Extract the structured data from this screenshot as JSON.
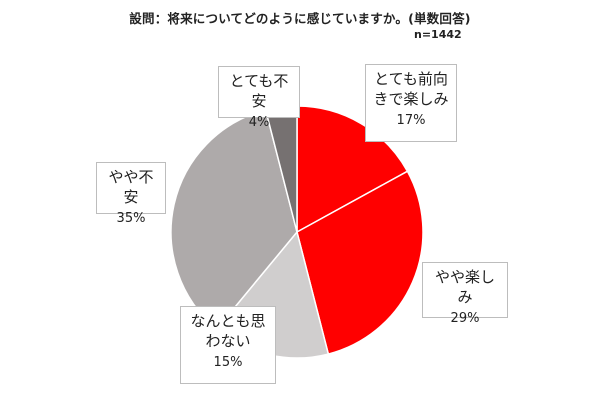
{
  "header": {
    "title": "設問：将来についてどのように感じていますか。(単数回答)",
    "sample": "n=1442"
  },
  "chart_data": {
    "type": "pie",
    "start": "12 o'clock, clockwise",
    "slices": [
      {
        "label_lines": [
          "とても前向",
          "きで楽しみ"
        ],
        "value": 17,
        "value_label": "17%",
        "color": "#ff0000"
      },
      {
        "label_lines": [
          "やや楽しみ"
        ],
        "value": 29,
        "value_label": "29%",
        "color": "#ff0000"
      },
      {
        "label_lines": [
          "なんとも思",
          "わない"
        ],
        "value": 15,
        "value_label": "15%",
        "color": "#d0cece"
      },
      {
        "label_lines": [
          "やや不安"
        ],
        "value": 35,
        "value_label": "35%",
        "color": "#aeaaaa"
      },
      {
        "label_lines": [
          "とても不安"
        ],
        "value": 4,
        "value_label": "4%",
        "color": "#767171"
      }
    ],
    "slice_border_color": "#ffffff"
  }
}
